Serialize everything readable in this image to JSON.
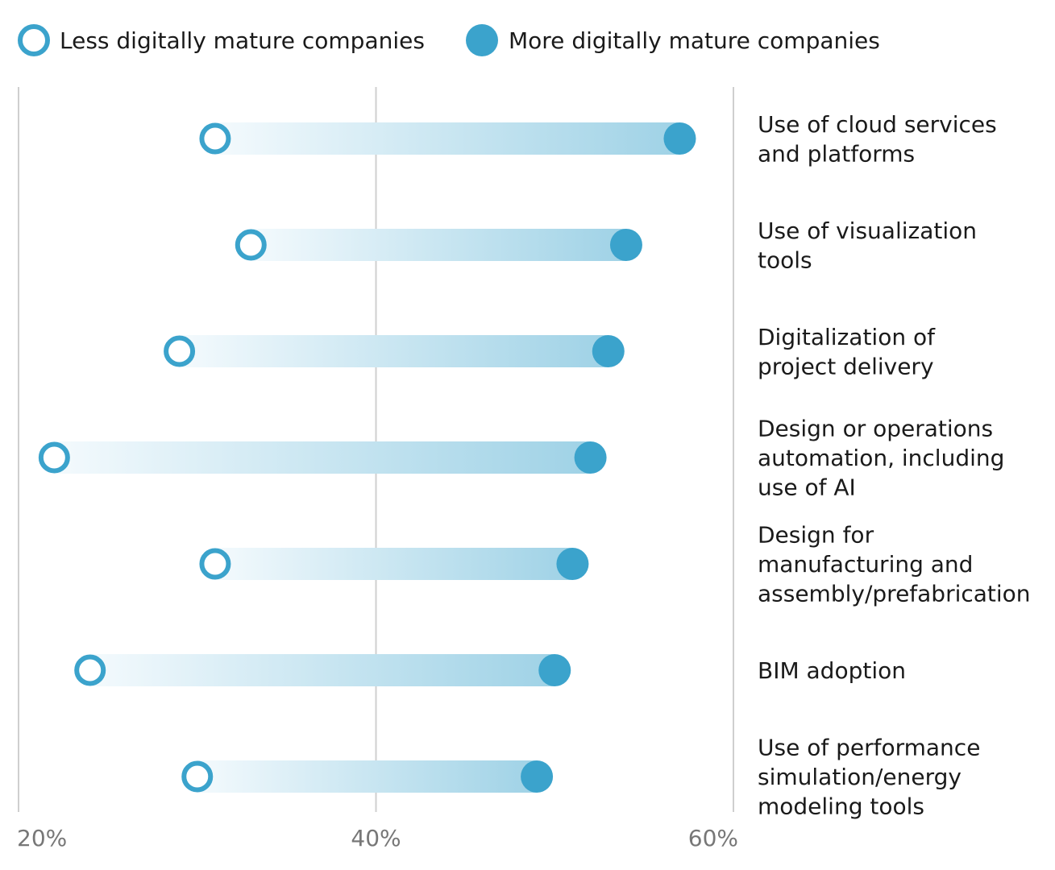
{
  "chart_data": {
    "type": "dumbbell",
    "title": "",
    "xlabel": "",
    "ylabel": "",
    "xlim": [
      20,
      60
    ],
    "x_ticks": [
      20,
      40,
      60
    ],
    "x_tick_labels": [
      "20%",
      "40%",
      "60%"
    ],
    "grid": "vertical lines at ticks",
    "legend_position": "top-left",
    "categories": [
      [
        "Use of cloud services",
        "and platforms"
      ],
      [
        "Use of visualization",
        "tools"
      ],
      [
        "Digitalization of",
        "project delivery"
      ],
      [
        "Design or operations",
        "automation, including",
        "use of AI"
      ],
      [
        "Design for",
        "manufacturing and",
        "assembly/prefabrication"
      ],
      [
        "BIM adoption"
      ],
      [
        "Use of performance",
        "simulation/energy",
        "modeling tools"
      ]
    ],
    "series": [
      {
        "name": "Less digitally mature companies",
        "marker": "hollow circle",
        "values": [
          31,
          33,
          29,
          22,
          31,
          24,
          30
        ]
      },
      {
        "name": "More digitally mature companies",
        "marker": "filled circle",
        "values": [
          57,
          54,
          53,
          52,
          51,
          50,
          49
        ]
      }
    ],
    "colors": {
      "marker": "#3ba3cc",
      "bar_start": "#f4fafd",
      "bar_end": "#9fd2e6",
      "grid": "#cfcfcf",
      "tick_text": "#777777"
    }
  }
}
